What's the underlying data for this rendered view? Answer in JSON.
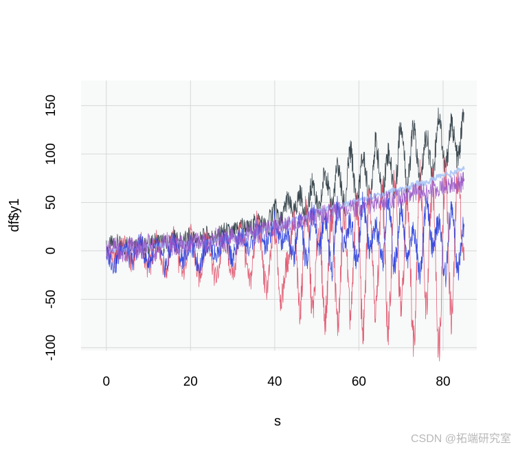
{
  "chart_data": {
    "type": "line",
    "xlabel": "s",
    "ylabel": "df$y1",
    "xlim": [
      -6,
      88
    ],
    "ylim": [
      -103,
      176
    ],
    "x_ticks": [
      0,
      20,
      40,
      60,
      80
    ],
    "y_ticks": [
      -100,
      -50,
      0,
      50,
      100,
      150
    ],
    "grid": true,
    "background": "#f8f9f9",
    "gridline_color": "#d6d8d8",
    "series": [
      {
        "color": "#2f3e46",
        "x": [
          0,
          2,
          4,
          6,
          8,
          10,
          12,
          14,
          16,
          18,
          20,
          22,
          24,
          26,
          28,
          30,
          32,
          34,
          36,
          38,
          40,
          41.5,
          43,
          44.5,
          46,
          47.5,
          49,
          50.5,
          52,
          53.5,
          55,
          56.5,
          58,
          59.5,
          61,
          62.5,
          64,
          65.5,
          67,
          68.5,
          70,
          71.5,
          73,
          74.5,
          76,
          77.5,
          79,
          80.5,
          82,
          83.5,
          85
        ],
        "y": [
          2,
          8,
          4,
          9,
          6,
          3,
          10,
          7,
          12,
          9,
          14,
          10,
          16,
          13,
          20,
          18,
          26,
          22,
          32,
          25,
          44,
          30,
          52,
          38,
          58,
          36,
          70,
          40,
          82,
          45,
          86,
          48,
          102,
          52,
          96,
          55,
          110,
          60,
          102,
          62,
          132,
          68,
          126,
          72,
          118,
          80,
          140,
          86,
          130,
          95,
          142
        ]
      },
      {
        "color": "#df536b",
        "x": [
          0,
          2,
          4,
          6,
          8,
          10,
          12,
          14,
          16,
          18,
          20,
          22,
          24,
          26,
          28,
          30,
          32,
          34,
          36,
          38,
          40,
          41.5,
          43,
          44.5,
          46,
          47.5,
          49,
          50.5,
          52,
          53.5,
          55,
          56.5,
          58,
          59.5,
          61,
          62.5,
          64,
          65.5,
          67,
          68.5,
          70,
          71.5,
          73,
          74.5,
          76,
          77.5,
          79,
          80.5,
          82,
          83.5,
          85
        ],
        "y": [
          0,
          -8,
          6,
          -12,
          10,
          -18,
          12,
          -20,
          14,
          -24,
          15,
          -26,
          16,
          -28,
          10,
          -22,
          24,
          -32,
          30,
          -38,
          20,
          -50,
          -12,
          30,
          -60,
          45,
          -60,
          20,
          -70,
          38,
          -75,
          40,
          -68,
          50,
          -82,
          58,
          -60,
          60,
          -82,
          70,
          -60,
          56,
          -90,
          75,
          -58,
          70,
          -95,
          80,
          -68,
          75,
          -10
        ]
      },
      {
        "color": "#a9c4f5",
        "x": [
          0,
          5,
          10,
          15,
          20,
          25,
          30,
          35,
          40,
          45,
          50,
          55,
          60,
          65,
          70,
          75,
          80,
          85
        ],
        "y": [
          0,
          2,
          4,
          6,
          8,
          10,
          14,
          18,
          24,
          32,
          40,
          46,
          52,
          58,
          64,
          70,
          78,
          84
        ]
      },
      {
        "color": "#2d43dd",
        "x": [
          0,
          2,
          4,
          6,
          8,
          10,
          12,
          14,
          16,
          18,
          20,
          22,
          24,
          26,
          28,
          30,
          32,
          34,
          36,
          38,
          40,
          41.5,
          43,
          44.5,
          46,
          47.5,
          49,
          50.5,
          52,
          53.5,
          55,
          56.5,
          58,
          59.5,
          61,
          62.5,
          64,
          65.5,
          67,
          68.5,
          70,
          71.5,
          73,
          74.5,
          76,
          77.5,
          79,
          80.5,
          82,
          83.5,
          85
        ],
        "y": [
          -4,
          -14,
          6,
          -10,
          8,
          -12,
          4,
          -16,
          10,
          -8,
          6,
          -14,
          8,
          -4,
          12,
          -6,
          16,
          2,
          24,
          4,
          30,
          10,
          20,
          -5,
          34,
          -10,
          40,
          5,
          34,
          -18,
          44,
          8,
          30,
          -10,
          52,
          0,
          24,
          -12,
          50,
          -15,
          46,
          -8,
          22,
          -20,
          48,
          5,
          30,
          -25,
          45,
          -20,
          25
        ]
      },
      {
        "color": "#9b59c7",
        "x": [
          0,
          2,
          4,
          6,
          8,
          10,
          12,
          14,
          16,
          18,
          20,
          22,
          24,
          26,
          28,
          30,
          32,
          34,
          36,
          38,
          40,
          42,
          44,
          46,
          48,
          50,
          52,
          54,
          56,
          58,
          60,
          62,
          64,
          66,
          68,
          70,
          72,
          74,
          76,
          78,
          80,
          82,
          84,
          85
        ],
        "y": [
          0,
          4,
          -4,
          6,
          0,
          8,
          -2,
          10,
          4,
          6,
          8,
          12,
          6,
          14,
          10,
          16,
          14,
          20,
          18,
          22,
          24,
          28,
          26,
          32,
          34,
          36,
          38,
          40,
          44,
          42,
          46,
          48,
          50,
          52,
          54,
          56,
          58,
          60,
          60,
          64,
          66,
          68,
          70,
          72
        ]
      }
    ]
  },
  "watermark": "CSDN @拓端研究室"
}
